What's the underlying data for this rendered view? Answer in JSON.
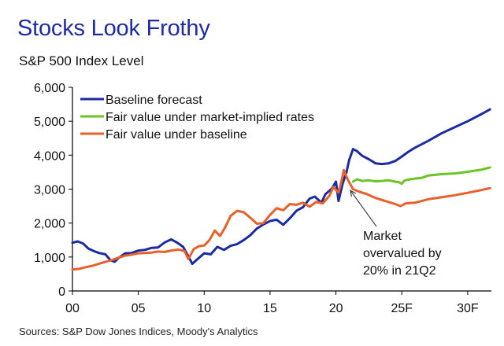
{
  "chart_data": {
    "type": "line",
    "title": "Stocks Look Frothy",
    "subtitle": "S&P 500 Index Level",
    "source": "Sources: S&P Dow Jones Indices, Moody's Analytics",
    "xlabel": "",
    "ylabel": "",
    "xlim": [
      2000,
      2031.8
    ],
    "ylim": [
      0,
      6000
    ],
    "x_ticks": [
      {
        "value": 2000,
        "label": "00"
      },
      {
        "value": 2005,
        "label": "05"
      },
      {
        "value": 2010,
        "label": "10"
      },
      {
        "value": 2015,
        "label": "15"
      },
      {
        "value": 2020,
        "label": "20"
      },
      {
        "value": 2025,
        "label": "25F"
      },
      {
        "value": 2030,
        "label": "30F"
      }
    ],
    "y_ticks": [
      {
        "value": 0,
        "label": "0"
      },
      {
        "value": 1000,
        "label": "1,000"
      },
      {
        "value": 2000,
        "label": "2,000"
      },
      {
        "value": 3000,
        "label": "3,000"
      },
      {
        "value": 4000,
        "label": "4,000"
      },
      {
        "value": 5000,
        "label": "5,000"
      },
      {
        "value": 6000,
        "label": "6,000"
      }
    ],
    "grid": false,
    "legend_position": "top-left",
    "series": [
      {
        "name": "Baseline forecast",
        "color": "#1b2ca3",
        "points": [
          [
            2000.0,
            1420
          ],
          [
            2000.4,
            1460
          ],
          [
            2000.8,
            1400
          ],
          [
            2001.2,
            1250
          ],
          [
            2001.6,
            1180
          ],
          [
            2002.0,
            1120
          ],
          [
            2002.5,
            1080
          ],
          [
            2002.9,
            900
          ],
          [
            2003.2,
            860
          ],
          [
            2003.5,
            970
          ],
          [
            2004.0,
            1110
          ],
          [
            2004.5,
            1120
          ],
          [
            2005.0,
            1190
          ],
          [
            2005.5,
            1210
          ],
          [
            2006.0,
            1270
          ],
          [
            2006.5,
            1280
          ],
          [
            2007.0,
            1430
          ],
          [
            2007.5,
            1520
          ],
          [
            2008.0,
            1410
          ],
          [
            2008.4,
            1300
          ],
          [
            2008.8,
            1020
          ],
          [
            2009.1,
            800
          ],
          [
            2009.5,
            940
          ],
          [
            2010.0,
            1110
          ],
          [
            2010.5,
            1080
          ],
          [
            2011.0,
            1300
          ],
          [
            2011.5,
            1210
          ],
          [
            2012.0,
            1330
          ],
          [
            2012.5,
            1380
          ],
          [
            2013.0,
            1500
          ],
          [
            2013.5,
            1640
          ],
          [
            2014.0,
            1840
          ],
          [
            2014.5,
            1960
          ],
          [
            2015.0,
            2060
          ],
          [
            2015.5,
            2100
          ],
          [
            2016.0,
            1950
          ],
          [
            2016.5,
            2140
          ],
          [
            2017.0,
            2360
          ],
          [
            2017.5,
            2470
          ],
          [
            2018.0,
            2720
          ],
          [
            2018.4,
            2780
          ],
          [
            2018.9,
            2600
          ],
          [
            2019.2,
            2850
          ],
          [
            2019.7,
            3020
          ],
          [
            2020.0,
            3220
          ],
          [
            2020.2,
            2650
          ],
          [
            2020.5,
            3150
          ],
          [
            2020.8,
            3500
          ],
          [
            2021.0,
            3850
          ],
          [
            2021.3,
            4180
          ],
          [
            2021.6,
            4120
          ],
          [
            2022.0,
            3980
          ],
          [
            2022.5,
            3880
          ],
          [
            2023.0,
            3760
          ],
          [
            2023.5,
            3740
          ],
          [
            2024.0,
            3760
          ],
          [
            2024.5,
            3830
          ],
          [
            2025.0,
            3960
          ],
          [
            2025.5,
            4100
          ],
          [
            2026.0,
            4220
          ],
          [
            2027.0,
            4420
          ],
          [
            2028.0,
            4640
          ],
          [
            2029.0,
            4820
          ],
          [
            2030.0,
            5000
          ],
          [
            2031.0,
            5200
          ],
          [
            2031.7,
            5350
          ]
        ]
      },
      {
        "name": "Fair value under market-implied rates",
        "color": "#6cc526",
        "points": [
          [
            2021.3,
            3220
          ],
          [
            2021.6,
            3290
          ],
          [
            2022.0,
            3240
          ],
          [
            2022.5,
            3260
          ],
          [
            2023.0,
            3230
          ],
          [
            2023.5,
            3240
          ],
          [
            2024.0,
            3260
          ],
          [
            2024.5,
            3220
          ],
          [
            2024.8,
            3200
          ],
          [
            2025.0,
            3160
          ],
          [
            2025.2,
            3250
          ],
          [
            2025.6,
            3290
          ],
          [
            2026.0,
            3310
          ],
          [
            2026.5,
            3330
          ],
          [
            2027.0,
            3400
          ],
          [
            2027.5,
            3420
          ],
          [
            2028.0,
            3440
          ],
          [
            2029.0,
            3460
          ],
          [
            2030.0,
            3510
          ],
          [
            2031.0,
            3570
          ],
          [
            2031.7,
            3640
          ]
        ]
      },
      {
        "name": "Fair value under baseline",
        "color": "#e8602a",
        "points": [
          [
            2000.0,
            630
          ],
          [
            2000.5,
            650
          ],
          [
            2001.0,
            700
          ],
          [
            2001.5,
            740
          ],
          [
            2002.0,
            800
          ],
          [
            2002.5,
            860
          ],
          [
            2003.0,
            910
          ],
          [
            2003.5,
            980
          ],
          [
            2004.0,
            1040
          ],
          [
            2004.5,
            1070
          ],
          [
            2005.0,
            1110
          ],
          [
            2005.5,
            1120
          ],
          [
            2006.0,
            1130
          ],
          [
            2006.5,
            1160
          ],
          [
            2007.0,
            1150
          ],
          [
            2007.5,
            1190
          ],
          [
            2008.0,
            1220
          ],
          [
            2008.5,
            1180
          ],
          [
            2008.8,
            940
          ],
          [
            2009.2,
            1230
          ],
          [
            2009.6,
            1320
          ],
          [
            2010.0,
            1340
          ],
          [
            2010.4,
            1500
          ],
          [
            2010.8,
            1780
          ],
          [
            2011.2,
            1620
          ],
          [
            2011.6,
            1880
          ],
          [
            2012.0,
            2210
          ],
          [
            2012.5,
            2360
          ],
          [
            2013.0,
            2320
          ],
          [
            2013.5,
            2160
          ],
          [
            2014.0,
            1980
          ],
          [
            2014.5,
            2000
          ],
          [
            2015.0,
            2240
          ],
          [
            2015.5,
            2440
          ],
          [
            2016.0,
            2380
          ],
          [
            2016.5,
            2560
          ],
          [
            2017.0,
            2540
          ],
          [
            2017.5,
            2600
          ],
          [
            2018.0,
            2480
          ],
          [
            2018.5,
            2620
          ],
          [
            2019.0,
            2580
          ],
          [
            2019.5,
            2800
          ],
          [
            2019.8,
            3060
          ],
          [
            2020.2,
            2900
          ],
          [
            2020.4,
            3200
          ],
          [
            2020.6,
            3560
          ],
          [
            2020.9,
            3280
          ],
          [
            2021.3,
            3000
          ],
          [
            2021.8,
            2920
          ],
          [
            2022.3,
            2860
          ],
          [
            2023.0,
            2740
          ],
          [
            2023.5,
            2680
          ],
          [
            2024.0,
            2620
          ],
          [
            2024.5,
            2560
          ],
          [
            2024.9,
            2500
          ],
          [
            2025.3,
            2580
          ],
          [
            2026.0,
            2600
          ],
          [
            2027.0,
            2700
          ],
          [
            2028.0,
            2760
          ],
          [
            2029.0,
            2820
          ],
          [
            2030.0,
            2890
          ],
          [
            2031.0,
            2970
          ],
          [
            2031.7,
            3030
          ]
        ]
      }
    ],
    "annotation": {
      "lines": [
        "Market",
        "overvalued by",
        "20% in 21Q2"
      ],
      "target_point": [
        2021.1,
        2960
      ]
    },
    "colors": {
      "axis": "#000000",
      "title": "#1f2aa8"
    }
  }
}
